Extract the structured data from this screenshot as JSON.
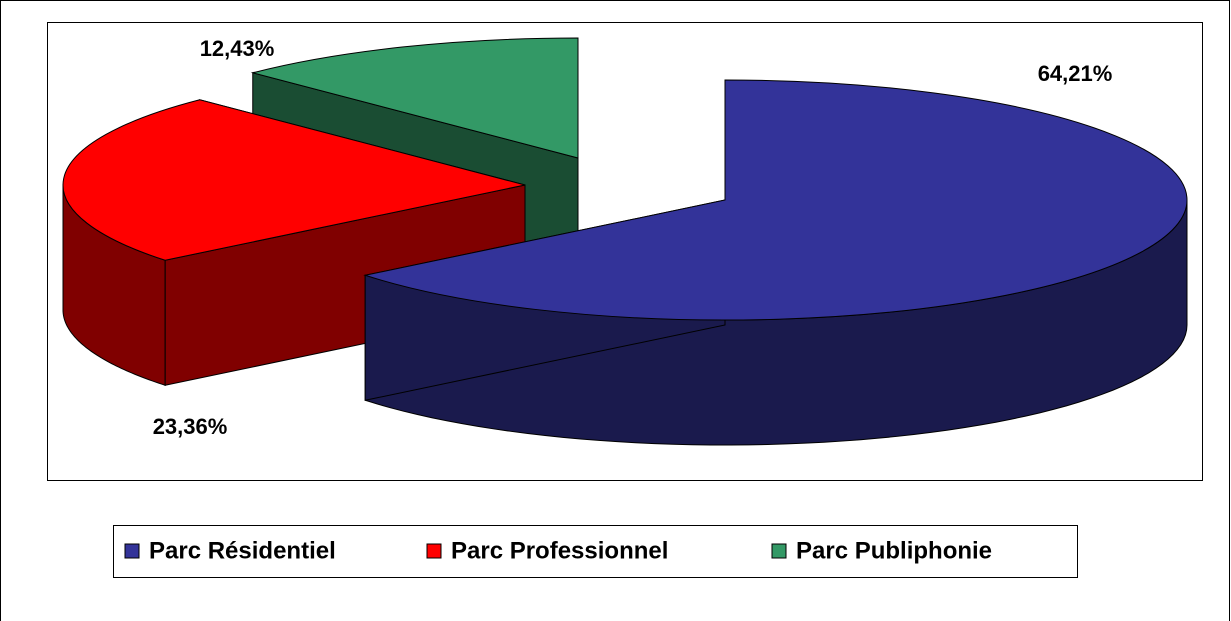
{
  "chart_data": {
    "type": "pie",
    "categories": [
      "Parc Résidentiel",
      "Parc Professionnel",
      "Parc Publiphonie"
    ],
    "values": [
      64.21,
      23.36,
      12.43
    ],
    "value_labels": [
      "64,21%",
      "23,36%",
      "12,43%"
    ],
    "colors": [
      "#333399",
      "#ff0000",
      "#339966"
    ],
    "legend": "bottom"
  }
}
